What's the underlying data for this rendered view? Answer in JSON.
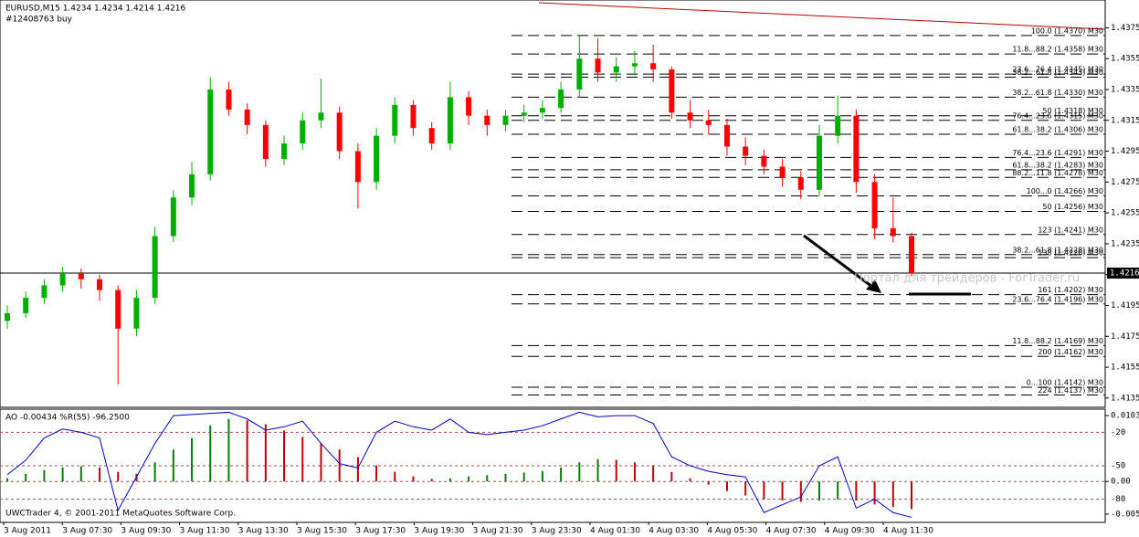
{
  "chart_data": [
    {
      "type": "candlestick",
      "title": "EURUSD,M15  1.4234 1.4234 1.4214 1.4216",
      "subtitle": "#12408763 buy",
      "watermark": "Портал для трейдеров - ForTrader.ru",
      "copyright": "UWCTrader 4, © 2001-2011 MetaQuotes Software Corp.",
      "x_labels": [
        "3 Aug 2011",
        "3 Aug 07:30",
        "3 Aug 09:30",
        "3 Aug 11:30",
        "3 Aug 13:30",
        "3 Aug 15:30",
        "3 Aug 17:30",
        "3 Aug 19:30",
        "3 Aug 21:30",
        "3 Aug 23:30",
        "4 Aug 01:30",
        "4 Aug 03:30",
        "4 Aug 05:30",
        "4 Aug 07:30",
        "4 Aug 09:30",
        "4 Aug 11:30"
      ],
      "up_color": "#00b000",
      "down_color": "#ff0000",
      "open": [
        1.4185,
        1.419,
        1.42,
        1.4208,
        1.4216,
        1.4212,
        1.4205,
        1.418,
        1.42,
        1.424,
        1.4265,
        1.428,
        1.4335,
        1.4322,
        1.4312,
        1.429,
        1.43,
        1.4315,
        1.432,
        1.4295,
        1.4275,
        1.4305,
        1.4325,
        1.431,
        1.43,
        1.433,
        1.4318,
        1.4312,
        1.4318,
        1.432,
        1.4323,
        1.4335,
        1.4355,
        1.4346,
        1.435,
        1.4352,
        1.4348,
        1.432,
        1.4315,
        1.4312,
        1.4298,
        1.4292,
        1.4285,
        1.4278,
        1.427,
        1.4305,
        1.4318,
        1.4275,
        1.4245,
        1.424
      ],
      "high": [
        1.4195,
        1.4204,
        1.4212,
        1.422,
        1.4219,
        1.4215,
        1.4208,
        1.4205,
        1.4246,
        1.427,
        1.4288,
        1.4343,
        1.434,
        1.4326,
        1.4315,
        1.4305,
        1.432,
        1.4342,
        1.4324,
        1.43,
        1.431,
        1.433,
        1.4328,
        1.4314,
        1.434,
        1.4334,
        1.4322,
        1.4322,
        1.4325,
        1.4328,
        1.434,
        1.437,
        1.4368,
        1.4356,
        1.436,
        1.4364,
        1.435,
        1.4328,
        1.4322,
        1.4316,
        1.4304,
        1.4296,
        1.429,
        1.4282,
        1.4312,
        1.4331,
        1.4322,
        1.428,
        1.4265,
        1.4242
      ],
      "low": [
        1.418,
        1.4187,
        1.4196,
        1.4204,
        1.4206,
        1.4198,
        1.4144,
        1.4175,
        1.4196,
        1.4236,
        1.426,
        1.4276,
        1.4318,
        1.4306,
        1.4285,
        1.4286,
        1.4296,
        1.431,
        1.429,
        1.4258,
        1.427,
        1.43,
        1.4305,
        1.4296,
        1.4296,
        1.4312,
        1.4305,
        1.4308,
        1.4314,
        1.4316,
        1.432,
        1.433,
        1.434,
        1.434,
        1.4344,
        1.434,
        1.4316,
        1.431,
        1.4306,
        1.4292,
        1.4286,
        1.428,
        1.4272,
        1.4264,
        1.4266,
        1.43,
        1.4268,
        1.4238,
        1.4236,
        1.4214
      ],
      "close": [
        1.419,
        1.42,
        1.4208,
        1.4216,
        1.4212,
        1.4205,
        1.418,
        1.42,
        1.424,
        1.4265,
        1.428,
        1.4335,
        1.4322,
        1.4312,
        1.429,
        1.43,
        1.4315,
        1.432,
        1.4295,
        1.4275,
        1.4305,
        1.4325,
        1.431,
        1.43,
        1.433,
        1.4318,
        1.4312,
        1.4318,
        1.432,
        1.4323,
        1.4335,
        1.4355,
        1.4346,
        1.435,
        1.4352,
        1.4348,
        1.432,
        1.4315,
        1.4312,
        1.4298,
        1.4292,
        1.4285,
        1.4278,
        1.427,
        1.4305,
        1.4318,
        1.4275,
        1.4245,
        1.424,
        1.4216
      ],
      "ylim": [
        1.4129,
        1.4393
      ],
      "yticks": [
        1.4375,
        1.4355,
        1.4335,
        1.4315,
        1.4295,
        1.4275,
        1.4255,
        1.4235,
        1.4215,
        1.4195,
        1.4175,
        1.4155,
        1.4135
      ],
      "last_price": 1.4216,
      "levels": [
        {
          "label": "100.0 (1.4370) M30",
          "value": 1.437
        },
        {
          "label": "11.8...88.2 (1.4358) M30",
          "value": 1.4358
        },
        {
          "label": "23.6...76.4 (1.4345) M30",
          "value": 1.4345
        },
        {
          "label": "38.2...61.8 (1.4343) M30",
          "value": 1.4343
        },
        {
          "label": "38.2...61.8 (1.4330) M30",
          "value": 1.433
        },
        {
          "label": "50 (1.4318) M30",
          "value": 1.4318
        },
        {
          "label": "76.4...23.6 (1.4315) M30",
          "value": 1.4315
        },
        {
          "label": "61.8...38.2 (1.4306) M30",
          "value": 1.4306
        },
        {
          "label": "76.4...23.6 (1.4291) M30",
          "value": 1.4291
        },
        {
          "label": "61.8...38.2 (1.4283) M30",
          "value": 1.4283
        },
        {
          "label": "88.2...11.8 (1.4278) M30",
          "value": 1.4278
        },
        {
          "label": "100...0 (1.4266) M30",
          "value": 1.4266
        },
        {
          "label": "50 (1.4256) M30",
          "value": 1.4256
        },
        {
          "label": "123 (1.4241) M30",
          "value": 1.4241
        },
        {
          "label": "38.2...61.8 (1.4228) M30",
          "value": 1.4228
        },
        {
          "label": "138 (1.4226) M30",
          "value": 1.4226
        },
        {
          "label": "161 (1.4202) M30",
          "value": 1.4202
        },
        {
          "label": "23.6...76.4 (1.4196) M30",
          "value": 1.4196
        },
        {
          "label": "11.8...88.2 (1.4169) M30",
          "value": 1.4169
        },
        {
          "label": "200 (1.4162) M30",
          "value": 1.4162
        },
        {
          "label": "0...100 (1.4142) M30",
          "value": 1.4142
        },
        {
          "label": "224 (1.4137) M30",
          "value": 1.4137
        }
      ]
    },
    {
      "type": "oscillator",
      "title": "AO -0.00434  %R(55) -96.2500",
      "series": [
        {
          "up_color": "#008000",
          "down_color": "#c00000",
          "values": [
            0.0005,
            0.0012,
            0.0018,
            0.0022,
            0.0024,
            0.0022,
            0.0015,
            0.0012,
            0.003,
            0.005,
            0.0068,
            0.0088,
            0.0098,
            0.0096,
            0.009,
            0.008,
            0.007,
            0.006,
            0.005,
            0.0038,
            0.0025,
            0.0015,
            0.0008,
            0.0004,
            0.0005,
            0.0008,
            0.001,
            0.0012,
            0.0014,
            0.0016,
            0.0022,
            0.003,
            0.0035,
            0.0034,
            0.003,
            0.0025,
            0.0015,
            0.0005,
            -0.0005,
            -0.0015,
            -0.0022,
            -0.0028,
            -0.003,
            -0.0032,
            -0.003,
            -0.0028,
            -0.003,
            -0.0036,
            -0.004,
            -0.00434
          ]
        },
        {
          "color": "#0000cc",
          "axis": "y2",
          "values": [
            -58,
            -45,
            -25,
            -17,
            -20,
            -25,
            -90,
            -60,
            -30,
            -5,
            -4,
            -3,
            -2,
            -8,
            -18,
            -15,
            -10,
            -30,
            -48,
            -52,
            -20,
            -10,
            -15,
            -18,
            -8,
            -20,
            -22,
            -20,
            -18,
            -14,
            -8,
            -2,
            -6,
            -5,
            -5,
            -12,
            -42,
            -50,
            -55,
            -58,
            -60,
            -92,
            -85,
            -78,
            -50,
            -42,
            -88,
            -80,
            -92,
            -96.25
          ]
        }
      ],
      "ylim": [
        -0.00628,
        0.01121
      ],
      "yticks": [
        0.01035,
        {
          "value": 0,
          "label": "0.00"
        },
        -0.00513
      ],
      "y2lim": [
        -100,
        0
      ],
      "y2ticks": [
        -20,
        -50,
        -80
      ]
    }
  ]
}
